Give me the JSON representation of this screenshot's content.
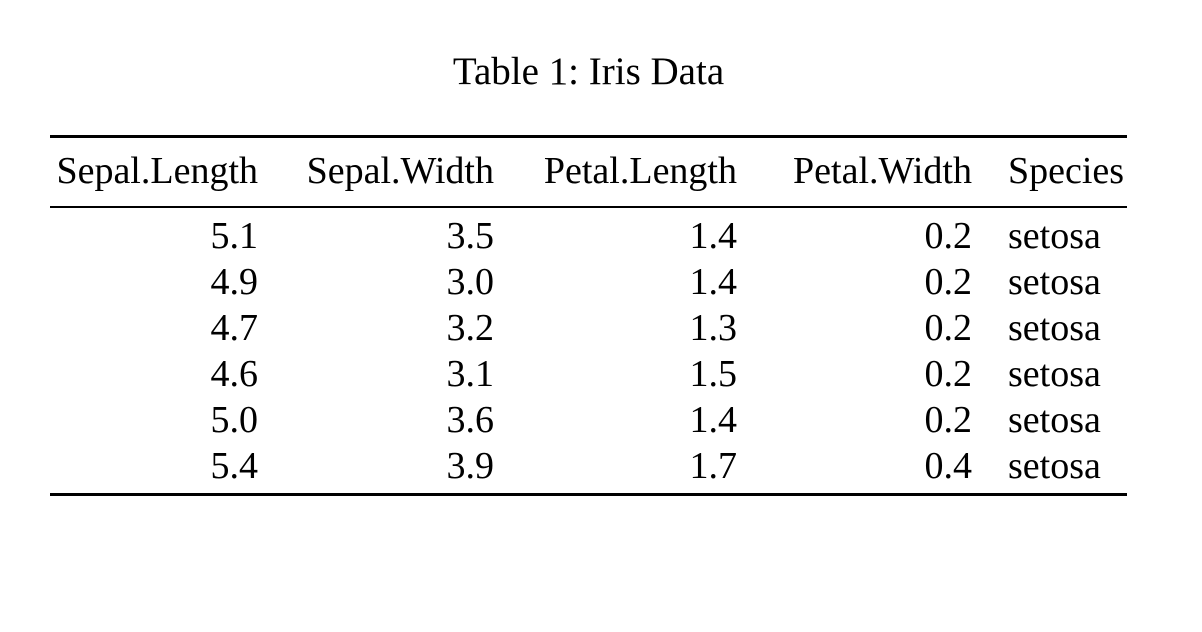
{
  "document": {
    "caption": "Table 1: Iris Data",
    "colors": {
      "background": "#ffffff",
      "text": "#000000",
      "rule": "#000000"
    }
  },
  "chart_data": {
    "type": "table",
    "title": "Table 1: Iris Data",
    "headers": [
      "Sepal.Length",
      "Sepal.Width",
      "Petal.Length",
      "Petal.Width",
      "Species"
    ],
    "rows": [
      [
        "5.1",
        "3.5",
        "1.4",
        "0.2",
        "setosa"
      ],
      [
        "4.9",
        "3.0",
        "1.4",
        "0.2",
        "setosa"
      ],
      [
        "4.7",
        "3.2",
        "1.3",
        "0.2",
        "setosa"
      ],
      [
        "4.6",
        "3.1",
        "1.5",
        "0.2",
        "setosa"
      ],
      [
        "5.0",
        "3.6",
        "1.4",
        "0.2",
        "setosa"
      ],
      [
        "5.4",
        "3.9",
        "1.7",
        "0.4",
        "setosa"
      ]
    ]
  }
}
